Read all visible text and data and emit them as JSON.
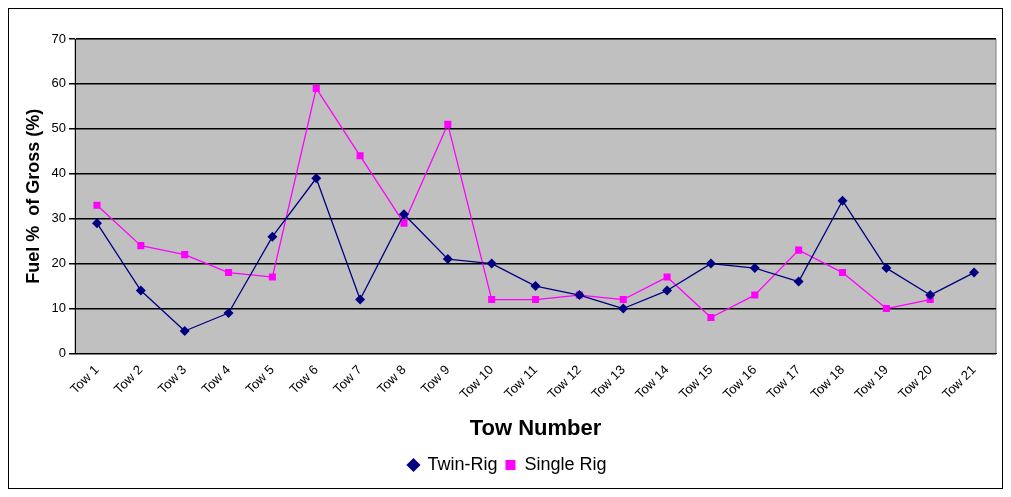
{
  "chart_data": {
    "type": "line",
    "xlabel": "Tow Number",
    "ylabel": "Fuel %  of Gross (%)",
    "categories": [
      "Tow 1",
      "Tow 2",
      "Tow 3",
      "Tow 4",
      "Tow 5",
      "Tow 6",
      "Tow 7",
      "Tow 8",
      "Tow 9",
      "Tow 10",
      "Tow 11",
      "Tow 12",
      "Tow 13",
      "Tow 14",
      "Tow 15",
      "Tow 16",
      "Tow 17",
      "Tow 18",
      "Tow 19",
      "Tow 20",
      "Tow 21"
    ],
    "series": [
      {
        "name": "Twin-Rig",
        "color": "#000080",
        "marker": "diamond",
        "values": [
          29,
          14,
          5,
          9,
          26,
          39,
          12,
          31,
          21,
          20,
          15,
          13,
          10,
          14,
          20,
          19,
          16,
          34,
          19,
          13,
          18
        ]
      },
      {
        "name": "Single Rig",
        "color": "#ff00ff",
        "marker": "square",
        "values": [
          33,
          24,
          22,
          18,
          17,
          59,
          44,
          29,
          51,
          12,
          12,
          13,
          12,
          17,
          8,
          13,
          23,
          18,
          10,
          12,
          null
        ]
      }
    ],
    "ylim": [
      0,
      70
    ],
    "yticks": [
      0,
      10,
      20,
      30,
      40,
      50,
      60,
      70
    ],
    "grid": "y",
    "legend": "bottom",
    "line_style": "solid"
  }
}
